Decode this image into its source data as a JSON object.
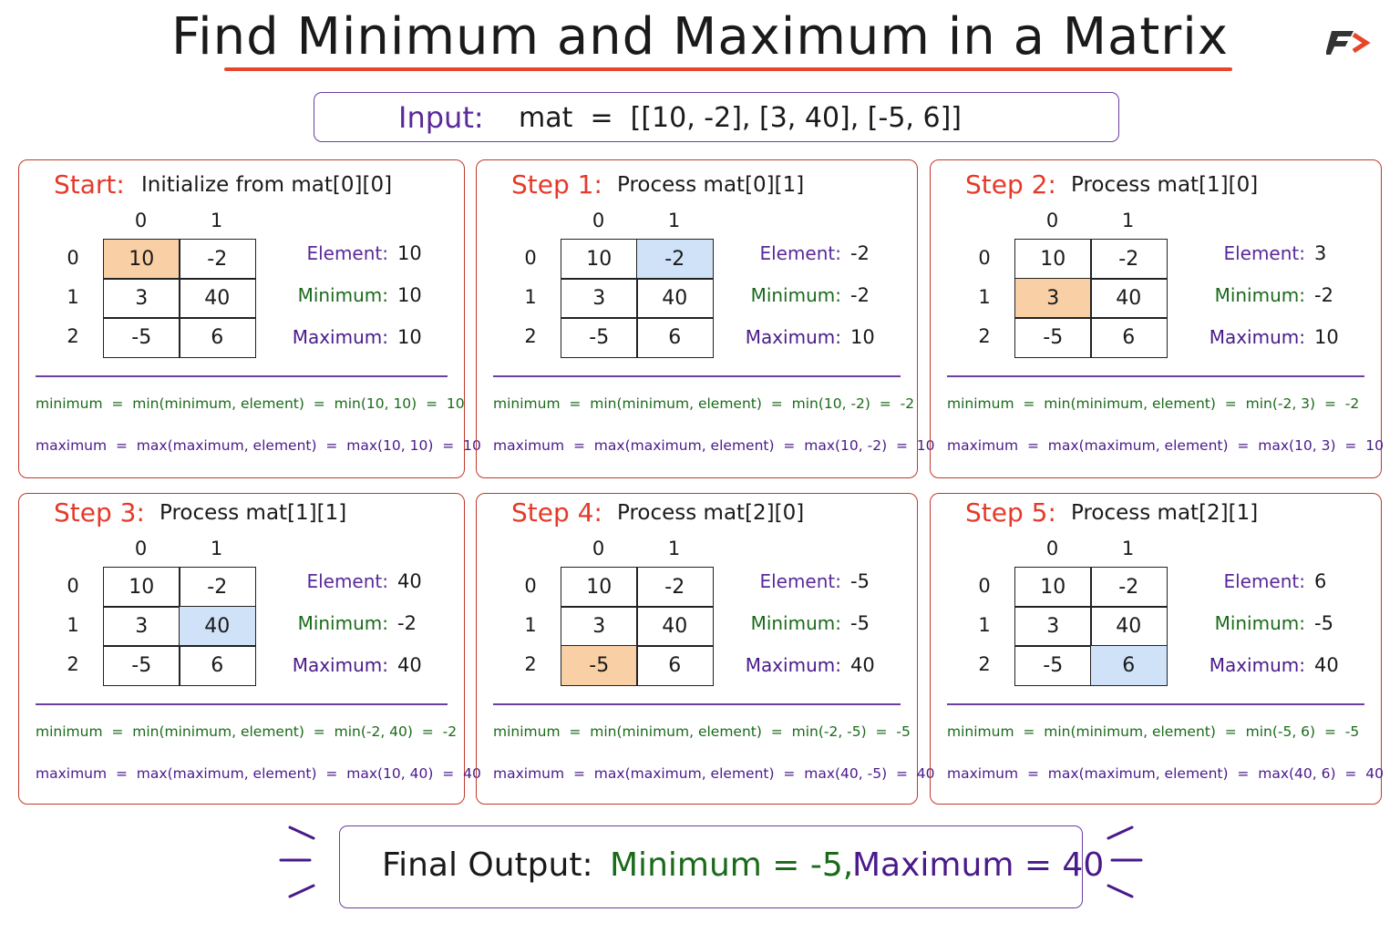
{
  "title": "Find Minimum and Maximum in a Matrix",
  "input": {
    "label": "Input:",
    "expression": "mat  =  [[10, -2], [3, 40], [-5, 6]]"
  },
  "matrix": [
    [
      10,
      -2
    ],
    [
      3,
      40
    ],
    [
      -5,
      6
    ]
  ],
  "row_indices": [
    0,
    1,
    2
  ],
  "col_indices": [
    0,
    1
  ],
  "labels": {
    "element": "Element:",
    "minimum": "Minimum:",
    "maximum": "Maximum:"
  },
  "steps": [
    {
      "heading": "Start:",
      "description": "Initialize from mat[0][0]",
      "highlight": [
        0,
        0
      ],
      "highlight_color": "#f9cfa6",
      "element": 10,
      "minimum": 10,
      "maximum": 10,
      "min_formula": "minimum  =  min(minimum, element)  =  min(10, 10)  =  10",
      "max_formula": "maximum  =  max(maximum, element)  =  max(10, 10)  =  10"
    },
    {
      "heading": "Step 1:",
      "description": "Process mat[0][1]",
      "highlight": [
        0,
        1
      ],
      "highlight_color": "#cfe2f8",
      "element": -2,
      "minimum": -2,
      "maximum": 10,
      "min_formula": "minimum  =  min(minimum, element)  =  min(10, -2)  =  -2",
      "max_formula": "maximum  =  max(maximum, element)  =  max(10, -2)  =  10"
    },
    {
      "heading": "Step 2:",
      "description": "Process mat[1][0]",
      "highlight": [
        1,
        0
      ],
      "highlight_color": "#f9cfa6",
      "element": 3,
      "minimum": -2,
      "maximum": 10,
      "min_formula": "minimum  =  min(minimum, element)  =  min(-2, 3)  =  -2",
      "max_formula": "maximum  =  max(maximum, element)  =  max(10, 3)  =  10"
    },
    {
      "heading": "Step 3:",
      "description": "Process mat[1][1]",
      "highlight": [
        1,
        1
      ],
      "highlight_color": "#cfe2f8",
      "element": 40,
      "minimum": -2,
      "maximum": 40,
      "min_formula": "minimum  =  min(minimum, element)  =  min(-2, 40)  =  -2",
      "max_formula": "maximum  =  max(maximum, element)  =  max(10, 40)  =  40"
    },
    {
      "heading": "Step 4:",
      "description": "Process mat[2][0]",
      "highlight": [
        2,
        0
      ],
      "highlight_color": "#f9cfa6",
      "element": -5,
      "minimum": -5,
      "maximum": 40,
      "min_formula": "minimum  =  min(minimum, element)  =  min(-2, -5)  =  -5",
      "max_formula": "maximum  =  max(maximum, element)  =  max(40, -5)  =  40"
    },
    {
      "heading": "Step 5:",
      "description": "Process mat[2][1]",
      "highlight": [
        2,
        1
      ],
      "highlight_color": "#cfe2f8",
      "element": 6,
      "minimum": -5,
      "maximum": 40,
      "min_formula": "minimum  =  min(minimum, element)  =  min(-5, 6)  =  -5",
      "max_formula": "maximum  =  max(maximum, element)  =  max(40, 6)  =  40"
    }
  ],
  "final": {
    "label": "Final Output:",
    "minimum": "Minimum = -5,",
    "maximum": "Maximum = 40"
  }
}
